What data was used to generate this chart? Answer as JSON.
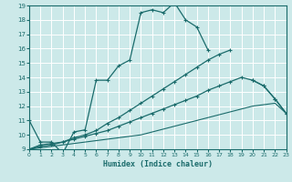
{
  "xlabel": "Humidex (Indice chaleur)",
  "xlim": [
    0,
    23
  ],
  "ylim": [
    9,
    19
  ],
  "xticks": [
    0,
    1,
    2,
    3,
    4,
    5,
    6,
    7,
    8,
    9,
    10,
    11,
    12,
    13,
    14,
    15,
    16,
    17,
    18,
    19,
    20,
    21,
    22,
    23
  ],
  "yticks": [
    9,
    10,
    11,
    12,
    13,
    14,
    15,
    16,
    17,
    18,
    19
  ],
  "bg_color": "#cce9e9",
  "line_color": "#1a6b6b",
  "grid_color": "#ffffff",
  "curve1": {
    "x": [
      0,
      1,
      2,
      3,
      4,
      5,
      6,
      7,
      8,
      9,
      10,
      11,
      12,
      13,
      14,
      15,
      16,
      17,
      18
    ],
    "y": [
      11,
      9.5,
      9.5,
      8.7,
      10.2,
      10.35,
      13.8,
      13.8,
      14.8,
      15.2,
      18.5,
      18.7,
      18.5,
      19.2,
      18.0,
      17.5,
      15.9,
      null,
      null
    ]
  },
  "curve2": {
    "x": [
      0,
      1,
      2,
      3,
      4,
      5,
      6,
      7,
      8,
      9,
      10,
      11,
      12,
      13,
      14,
      15,
      16,
      17,
      18,
      19,
      20,
      21,
      22,
      23
    ],
    "y": [
      9.0,
      9.3,
      9.4,
      9.5,
      9.8,
      10.0,
      10.3,
      10.8,
      11.2,
      11.7,
      12.2,
      12.7,
      13.2,
      13.7,
      14.2,
      14.7,
      15.2,
      15.6,
      15.9,
      null,
      13.8,
      13.4,
      12.5,
      11.5
    ]
  },
  "curve3": {
    "x": [
      0,
      1,
      2,
      3,
      4,
      5,
      6,
      7,
      8,
      9,
      10,
      11,
      12,
      13,
      14,
      15,
      16,
      17,
      18,
      19,
      20,
      21,
      22,
      23
    ],
    "y": [
      9.0,
      9.1,
      9.2,
      9.3,
      9.4,
      9.5,
      9.6,
      9.7,
      9.8,
      9.9,
      10.0,
      10.2,
      10.4,
      10.6,
      10.8,
      11.0,
      11.2,
      11.4,
      11.6,
      11.8,
      12.0,
      12.1,
      12.2,
      11.5
    ]
  },
  "curve4": {
    "x": [
      0,
      1,
      2,
      3,
      4,
      5,
      6,
      7,
      8,
      9,
      10,
      11,
      12,
      13,
      14,
      15,
      16,
      17,
      18,
      19,
      20,
      21,
      22,
      23
    ],
    "y": [
      9.0,
      9.2,
      9.3,
      9.5,
      9.7,
      9.9,
      10.1,
      10.3,
      10.6,
      10.9,
      11.2,
      11.5,
      11.8,
      12.1,
      12.4,
      12.7,
      13.1,
      13.4,
      13.7,
      14.0,
      13.8,
      13.4,
      12.5,
      11.5
    ]
  }
}
